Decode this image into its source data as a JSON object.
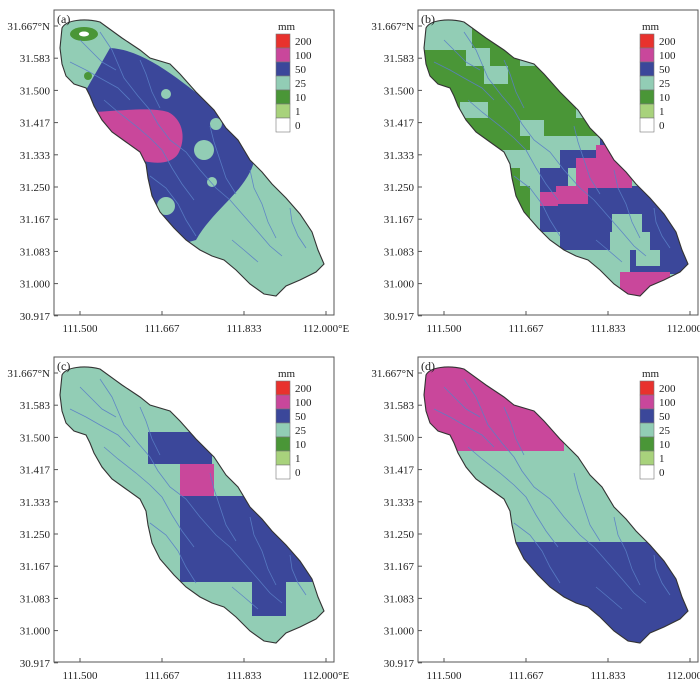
{
  "panels": [
    {
      "id": "a",
      "label": "(a)"
    },
    {
      "id": "b",
      "label": "(b)"
    },
    {
      "id": "c",
      "label": "(c)"
    },
    {
      "id": "d",
      "label": "(d)"
    }
  ],
  "axes": {
    "y_ticks": [
      "31.667°N",
      "31.583",
      "31.500",
      "31.417",
      "31.333",
      "31.250",
      "31.167",
      "31.083",
      "31.000",
      "30.917"
    ],
    "x_ticks": [
      "111.500",
      "111.667",
      "111.833",
      "112.000°E"
    ]
  },
  "legend": {
    "unit": "mm",
    "classes": [
      {
        "label": "200",
        "color": "#e8322e"
      },
      {
        "label": "100",
        "color": "#c9479b"
      },
      {
        "label": "50",
        "color": "#3b479a"
      },
      {
        "label": "25",
        "color": "#92cdb5"
      },
      {
        "label": "10",
        "color": "#4a9637"
      },
      {
        "label": "1",
        "color": "#a8d27c"
      },
      {
        "label": "0",
        "color": "#ffffff"
      }
    ]
  },
  "colors": {
    "background_class": "#92cdb5",
    "blue": "#3b479a",
    "magenta": "#c9479b",
    "dark_green": "#4a9637",
    "river": "#5a7fc7",
    "outline": "#333333"
  }
}
